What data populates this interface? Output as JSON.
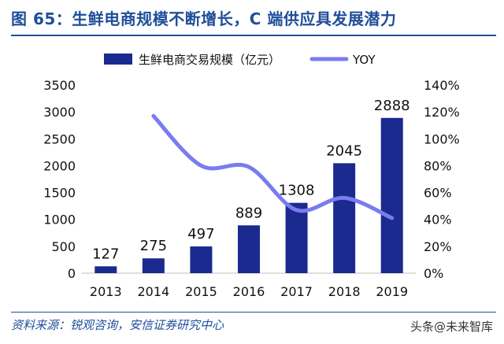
{
  "header": {
    "title": "图 65：生鲜电商规模不断增长，C 端供应具发展潜力"
  },
  "footer": {
    "source": "资料来源：锐观咨询，安信证券研究中心",
    "watermark": "头条@未来智库"
  },
  "colors": {
    "bar": "#1a2a8f",
    "line": "#7b7bf0",
    "accent": "#1f4e9a"
  },
  "chart_data": {
    "type": "bar",
    "categories": [
      "2013",
      "2014",
      "2015",
      "2016",
      "2017",
      "2018",
      "2019"
    ],
    "series": [
      {
        "name": "生鲜电商交易规模（亿元）",
        "type": "bar",
        "axis": "left",
        "values": [
          127,
          275,
          497,
          889,
          1308,
          2045,
          2888
        ],
        "labels": [
          "127",
          "275",
          "497",
          "889",
          "1308",
          "2045",
          "2888"
        ]
      },
      {
        "name": "YOY",
        "type": "line",
        "axis": "right",
        "values": [
          null,
          117,
          80,
          79,
          47,
          56,
          41
        ]
      }
    ],
    "y_left": {
      "min": 0,
      "max": 3500,
      "ticks": [
        "0",
        "500",
        "1000",
        "1500",
        "2000",
        "2500",
        "3000",
        "3500"
      ]
    },
    "y_right": {
      "min": 0,
      "max": 140,
      "ticks": [
        "0%",
        "20%",
        "40%",
        "60%",
        "80%",
        "100%",
        "120%",
        "140%"
      ]
    },
    "legend": "top",
    "grid": false
  }
}
